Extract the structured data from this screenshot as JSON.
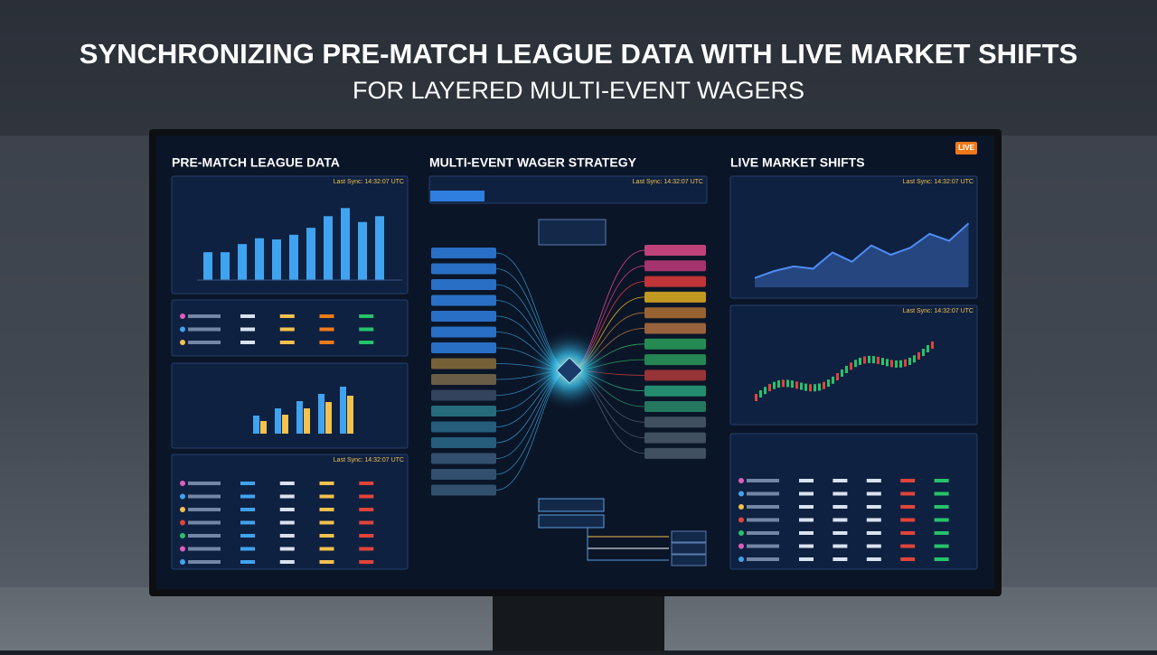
{
  "header": {
    "title": "SYNCHRONIZING PRE-MATCH LEAGUE DATA WITH LIVE MARKET SHIFTS",
    "subtitle": "FOR LAYERED MULTI-EVENT WAGERS"
  },
  "panels": [
    {
      "title": "PRE-MATCH LEAGUE DATA"
    },
    {
      "title": "MULTI-EVENT WAGER STRATEGY"
    },
    {
      "title": "LIVE MARKET SHIFTS",
      "badge": "LIVE"
    }
  ],
  "sync": "Last Sync: 14:32:07 UTC",
  "league_bars": {
    "values": [
      24,
      24,
      31,
      36,
      35,
      39,
      45,
      55,
      62,
      50,
      55
    ],
    "ylim": [
      0,
      70
    ],
    "color": "#3fa3f0"
  },
  "market_line": {
    "values": [
      8,
      14,
      18,
      16,
      30,
      22,
      36,
      28,
      34,
      46,
      40,
      55
    ],
    "ylim": [
      0,
      70
    ],
    "color": "#4f8df5"
  }
}
